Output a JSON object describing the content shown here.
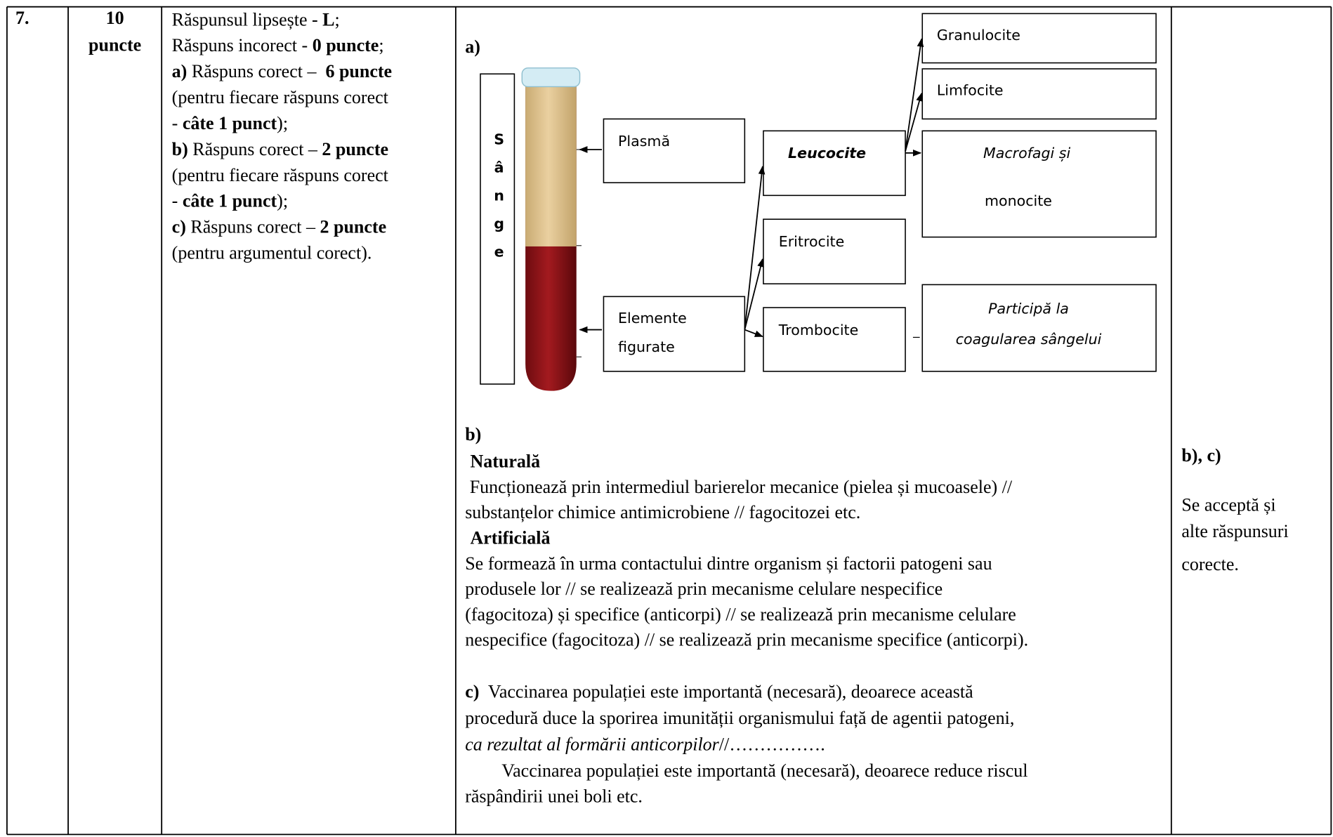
{
  "row": {
    "number": "7.",
    "points": [
      "10",
      "puncte"
    ],
    "scoring": [
      [
        "Răspunsul lipsește - ",
        {
          "text": "L",
          "style": "bold"
        },
        ";"
      ],
      [
        "Răspuns incorect - ",
        {
          "text": "0 puncte",
          "style": "bold"
        },
        ";"
      ],
      [
        {
          "text": "a)",
          "style": "bold"
        },
        " Răspuns corect –  ",
        {
          "text": "6 puncte",
          "style": "bold"
        }
      ],
      [
        "(pentru fiecare răspuns corect"
      ],
      [
        "- ",
        {
          "text": "câte 1 punct",
          "style": "bold"
        },
        ");"
      ],
      [
        {
          "text": "b)",
          "style": "bold"
        },
        " Răspuns corect – ",
        {
          "text": "2 puncte",
          "style": "bold"
        }
      ],
      [
        "(pentru fiecare răspuns corect"
      ],
      [
        "- ",
        {
          "text": "câte 1 punct",
          "style": "bold"
        },
        ");"
      ],
      [
        {
          "text": "c)",
          "style": "bold"
        },
        " Răspuns corect – ",
        {
          "text": "2 puncte",
          "style": "bold"
        }
      ],
      [
        "(pentru argumentul corect)."
      ]
    ],
    "answer_a": {
      "label": "a)",
      "blood": "Sânge",
      "plasma": "Plasmă",
      "formed_elements": [
        "Elemente",
        "figurate"
      ],
      "leukocytes": "Leucocite",
      "erythrocytes": "Eritrocite",
      "thrombocytes": "Trombocite",
      "granulocytes": "Granulocite",
      "lymphocytes": "Limfocite",
      "macrophages": [
        "Macrofagi și",
        "monocite"
      ],
      "coagulation": [
        "Participă la",
        "coagularea sângelui"
      ]
    },
    "answer_b": [
      [
        {
          "text": "b)",
          "style": "bold"
        }
      ],
      [
        {
          "text": "Naturală",
          "style": "bold"
        }
      ],
      [
        " Funcționează prin intermediul barierelor mecanice (pielea și mucoasele) //"
      ],
      [
        "substanțelor chimice antimicrobiene // fagocitozei etc."
      ],
      [
        {
          "text": "Artificială",
          "style": "bold"
        }
      ],
      [
        "Se formează în urma contactului dintre organism și factorii patogeni sau"
      ],
      [
        "produsele lor // se realizează prin mecanisme celulare nespecifice"
      ],
      [
        "(fagocitoza) și specifice (anticorpi) // se realizează prin mecanisme celulare"
      ],
      [
        "nespecifice (fagocitoza) // se realizează prin mecanisme specifice (anticorpi)."
      ]
    ],
    "answer_c": [
      [
        {
          "text": "c)",
          "style": "bold"
        },
        "  Vaccinarea populației este importantă (necesară), deoarece această"
      ],
      [
        "procedură duce la sporirea imunității organismului față de agentii patogeni,"
      ],
      [
        {
          "text": "ca rezultat al formării anticorpilor",
          "style": "italic"
        },
        "//……………."
      ],
      [
        "Vaccinarea populației este importantă (necesară), deoarece reduce riscul"
      ],
      [
        "răspândirii unei boli etc."
      ]
    ],
    "notes": {
      "label": "b), c)",
      "lines": [
        "Se acceptă și",
        "alte răspunsuri",
        "corecte."
      ]
    }
  }
}
